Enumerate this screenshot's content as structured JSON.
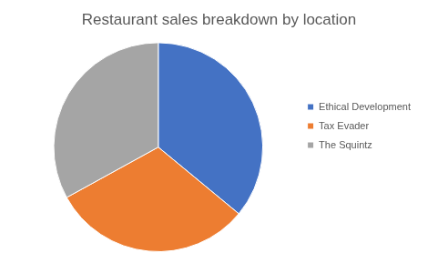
{
  "chart_data": {
    "type": "pie",
    "title": "Restaurant sales breakdown by location",
    "categories": [
      "Ethical Development",
      "Tax Evader",
      "The Squintz"
    ],
    "values": [
      36,
      31,
      33
    ],
    "colors": [
      "#4472c4",
      "#ed7d31",
      "#a5a5a5"
    ],
    "legend": "right"
  }
}
